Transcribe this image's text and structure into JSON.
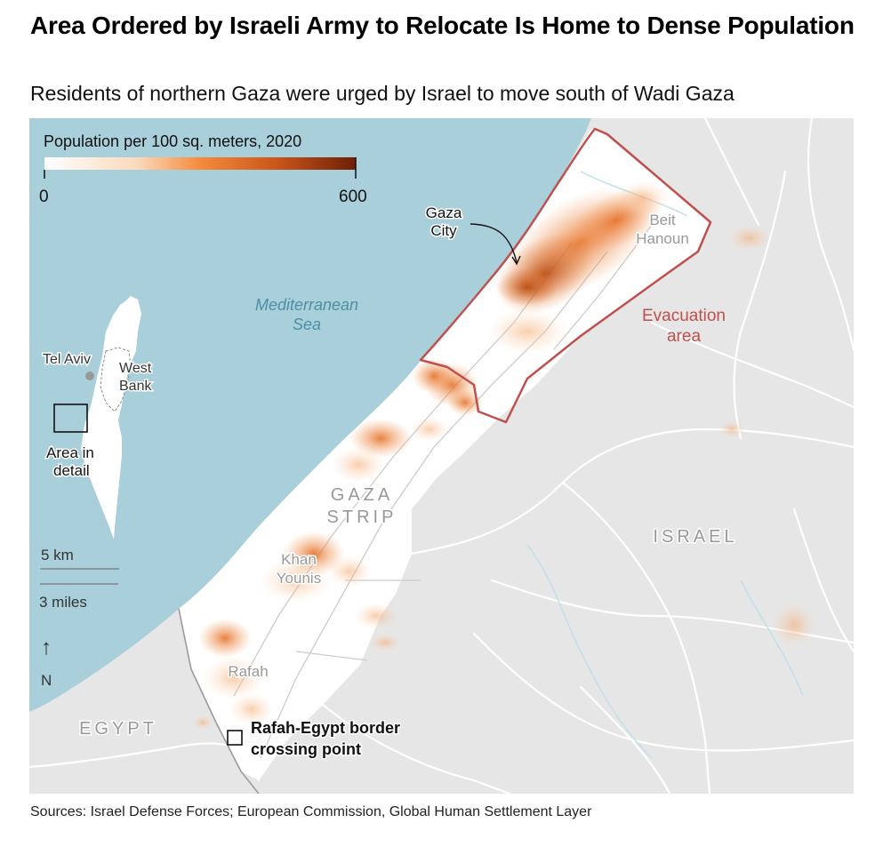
{
  "title": "Area Ordered by Israeli Army to Relocate Is Home to Dense Population",
  "subtitle": "Residents of northern Gaza were urged by Israel to move south of Wadi Gaza",
  "source": "Sources: Israel Defense Forces; European Commission, Global Human Settlement Layer",
  "legend": {
    "title": "Population per 100 sq. meters, 2020",
    "min_label": "0",
    "max_label": "600",
    "colors": [
      "#ffffff",
      "#fbd9bb",
      "#f58a3c",
      "#c9551a",
      "#6e1f06"
    ]
  },
  "labels": {
    "sea": [
      "Mediterranean",
      "Sea"
    ],
    "gaza_city": [
      "Gaza",
      "City"
    ],
    "beit_hanoun": [
      "Beit",
      "Hanoun"
    ],
    "evacuation": [
      "Evacuation",
      "area"
    ],
    "gaza_strip": [
      "GAZA",
      "STRIP"
    ],
    "khan_younis": [
      "Khan",
      "Younis"
    ],
    "rafah": "Rafah",
    "israel": "ISRAEL",
    "egypt": "EGYPT",
    "crossing": [
      "Rafah-Egypt border",
      "crossing point"
    ]
  },
  "inset": {
    "tel_aviv": "Tel Aviv",
    "west_bank": [
      "West",
      "Bank"
    ],
    "area_in_detail": [
      "Area in",
      "detail"
    ]
  },
  "scale": {
    "km": "5 km",
    "miles": "3 miles"
  },
  "north": {
    "arrow": "↑",
    "label": "N"
  },
  "colors": {
    "sea": "#a8cfda",
    "land": "#e6e6e6",
    "gaza_land": "#ffffff",
    "evacuation": "#c0504d",
    "road": "#ffffff",
    "density": "#f08a3e"
  }
}
